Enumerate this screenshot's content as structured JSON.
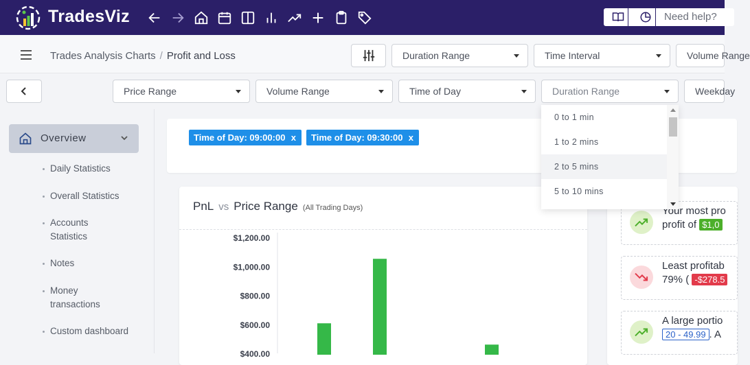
{
  "brand": {
    "name": "TradesViz",
    "accent": "#2b1f68"
  },
  "nav_icons": [
    "arrow-left-icon",
    "arrow-right-icon",
    "home-icon",
    "calendar-icon",
    "columns-icon",
    "bar-chart-icon",
    "trending-up-icon",
    "plus-icon",
    "clipboard-icon",
    "tag-icon"
  ],
  "help": {
    "placeholder": "Need help?"
  },
  "breadcrumb": {
    "parent": "Trades Analysis Charts",
    "separator": "/",
    "current": "Profit and Loss"
  },
  "top_filters": [
    "Duration Range",
    "Time Interval",
    "Volume Range"
  ],
  "second_filters": [
    "Price Range",
    "Volume Range",
    "Time of Day",
    "Duration Range",
    "Weekday"
  ],
  "sidebar": {
    "overview_label": "Overview",
    "items": [
      "Daily Statistics",
      "Overall Statistics",
      "Accounts Statistics",
      "Notes",
      "Money transactions",
      "Custom dashboard"
    ]
  },
  "chips": [
    "Time of Day: 09:00:00",
    "Time of Day: 09:30:00"
  ],
  "chip_close": "x",
  "dropdown": {
    "options": [
      "0 to 1 min",
      "1 to 2 mins",
      "2 to 5 mins",
      "5 to 10 mins"
    ],
    "highlighted": "2 to 5 mins"
  },
  "chart_card": {
    "title_left": "PnL",
    "vs": "vs",
    "title_right": "Price Range",
    "subtitle": "(All Trading Days)"
  },
  "chart_data": {
    "type": "bar",
    "title": "PnL vs Price Range",
    "subtitle": "(All Trading Days)",
    "y_ticks": [
      "$1,200.00",
      "$1,000.00",
      "$800.00",
      "$600.00",
      "$400.00"
    ],
    "ylim": [
      400,
      1200
    ],
    "values": [
      612,
      1057,
      465
    ],
    "bar_color": "#35b848",
    "grid": false
  },
  "insights": [
    {
      "icon": "trending-up-icon",
      "line1": "Your most pro",
      "line2_prefix": "profit of ",
      "badge": "$1,0",
      "badge_style": "green"
    },
    {
      "icon": "trending-down-icon",
      "line1": "Least profitab",
      "line2_prefix": "79% ( ",
      "badge": "-$278.5",
      "badge_style": "red"
    },
    {
      "icon": "trending-up-icon",
      "line1": "A large portio",
      "line2_prefix": "",
      "badge": "20 - 49.99",
      "line2_suffix": ". A",
      "badge_style": "outline"
    }
  ]
}
